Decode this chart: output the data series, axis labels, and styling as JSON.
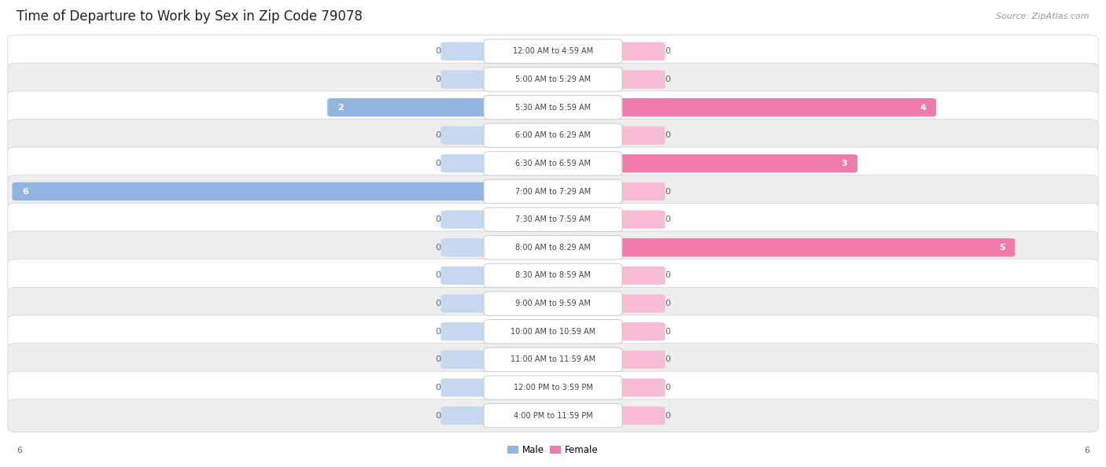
{
  "title": "Time of Departure to Work by Sex in Zip Code 79078",
  "source": "Source: ZipAtlas.com",
  "categories": [
    "12:00 AM to 4:59 AM",
    "5:00 AM to 5:29 AM",
    "5:30 AM to 5:59 AM",
    "6:00 AM to 6:29 AM",
    "6:30 AM to 6:59 AM",
    "7:00 AM to 7:29 AM",
    "7:30 AM to 7:59 AM",
    "8:00 AM to 8:29 AM",
    "8:30 AM to 8:59 AM",
    "9:00 AM to 9:59 AM",
    "10:00 AM to 10:59 AM",
    "11:00 AM to 11:59 AM",
    "12:00 PM to 3:59 PM",
    "4:00 PM to 11:59 PM"
  ],
  "male_values": [
    0,
    0,
    2,
    0,
    0,
    6,
    0,
    0,
    0,
    0,
    0,
    0,
    0,
    0
  ],
  "female_values": [
    0,
    0,
    4,
    0,
    3,
    0,
    0,
    5,
    0,
    0,
    0,
    0,
    0,
    0
  ],
  "male_color": "#92b4e0",
  "female_color": "#f07aaa",
  "male_stub_color": "#c5d8f0",
  "female_stub_color": "#f8bcd4",
  "male_label": "Male",
  "female_label": "Female",
  "axis_max": 6,
  "fig_bg": "#ffffff",
  "row_bg_odd": "#ffffff",
  "row_bg_even": "#eeeeee",
  "row_border": "#d0d0d0",
  "label_box_bg": "#ffffff",
  "label_box_border": "#cccccc",
  "title_fontsize": 12,
  "source_fontsize": 8,
  "cat_fontsize": 7,
  "val_fontsize": 8
}
